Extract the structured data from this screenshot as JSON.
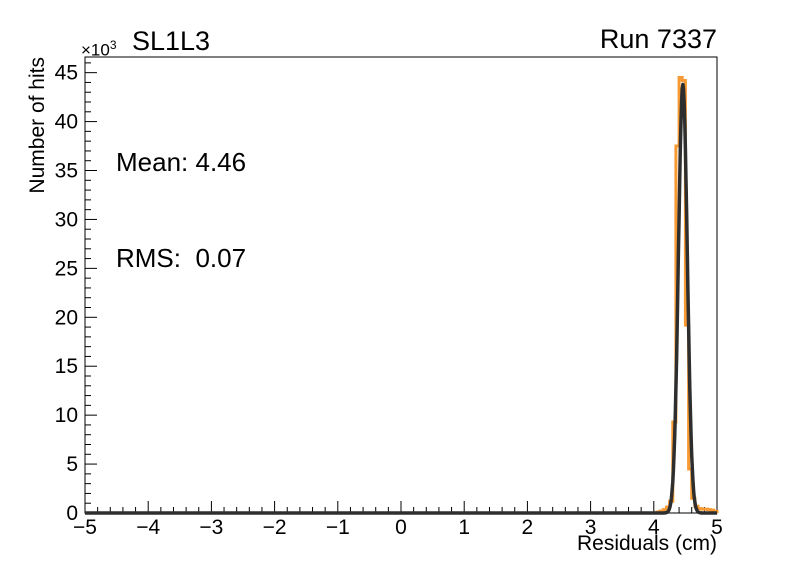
{
  "colors": {
    "histogram": "#f79a33",
    "fit": "#2e2e2e",
    "axis": "#000000",
    "text": "#000000",
    "background": "#ffffff"
  },
  "header": {
    "title": "SL1L3",
    "run_label": "Run 7337"
  },
  "stats": {
    "mean": "Mean: 4.46",
    "rms": "RMS:  0.07"
  },
  "chart_data": {
    "type": "bar",
    "subtype": "step-histogram-with-gaussian-fit",
    "title": "SL1L3",
    "right_title": "Run 7337",
    "xlabel": "Residuals (cm)",
    "ylabel": "Number of hits",
    "y_multiplier": "×10",
    "y_multiplier_exp": "3",
    "xlim": [
      -5,
      5
    ],
    "ylim": [
      0,
      46.6
    ],
    "grid": false,
    "legend": "none",
    "x_major_ticks": [
      {
        "v": -5,
        "label": "−5"
      },
      {
        "v": -4,
        "label": "−4"
      },
      {
        "v": -3,
        "label": "−3"
      },
      {
        "v": -2,
        "label": "−2"
      },
      {
        "v": -1,
        "label": "−1"
      },
      {
        "v": 0,
        "label": "0"
      },
      {
        "v": 1,
        "label": "1"
      },
      {
        "v": 2,
        "label": "2"
      },
      {
        "v": 3,
        "label": "3"
      },
      {
        "v": 4,
        "label": "4"
      },
      {
        "v": 5,
        "label": "5"
      }
    ],
    "x_minor_step": 0.2,
    "y_major_ticks": [
      {
        "v": 0,
        "label": "0"
      },
      {
        "v": 5,
        "label": "5"
      },
      {
        "v": 10,
        "label": "10"
      },
      {
        "v": 15,
        "label": "15"
      },
      {
        "v": 20,
        "label": "20"
      },
      {
        "v": 25,
        "label": "25"
      },
      {
        "v": 30,
        "label": "30"
      },
      {
        "v": 35,
        "label": "35"
      },
      {
        "v": 40,
        "label": "40"
      },
      {
        "v": 45,
        "label": "45"
      }
    ],
    "y_minor_step": 1,
    "y_units": "thousands of hits",
    "series": [
      {
        "name": "residuals-histogram",
        "style": "step",
        "color": "#f79a33",
        "line_width": 3,
        "bin_width": 0.05,
        "bins_x0_value_k": [
          [
            4.05,
            0.1
          ],
          [
            4.1,
            0.2
          ],
          [
            4.15,
            0.35
          ],
          [
            4.2,
            0.6
          ],
          [
            4.25,
            1.2
          ],
          [
            4.3,
            9.3
          ],
          [
            4.35,
            37.5
          ],
          [
            4.4,
            44.5
          ],
          [
            4.45,
            44.2
          ],
          [
            4.5,
            19.2
          ],
          [
            4.55,
            4.5
          ],
          [
            4.6,
            1.5
          ],
          [
            4.65,
            0.7
          ],
          [
            4.7,
            0.45
          ],
          [
            4.75,
            0.4
          ],
          [
            4.8,
            0.4
          ],
          [
            4.85,
            0.35
          ],
          [
            4.9,
            0.3
          ],
          [
            4.95,
            0.15
          ]
        ]
      },
      {
        "name": "gaussian-fit",
        "style": "curve",
        "color": "#2e2e2e",
        "line_width": 3.5,
        "mean": 4.46,
        "sigma": 0.07,
        "amplitude_k": 43.8,
        "range": [
          -5,
          5
        ]
      }
    ],
    "annotations": {
      "mean": "Mean: 4.46",
      "rms": "RMS:  0.07"
    }
  }
}
